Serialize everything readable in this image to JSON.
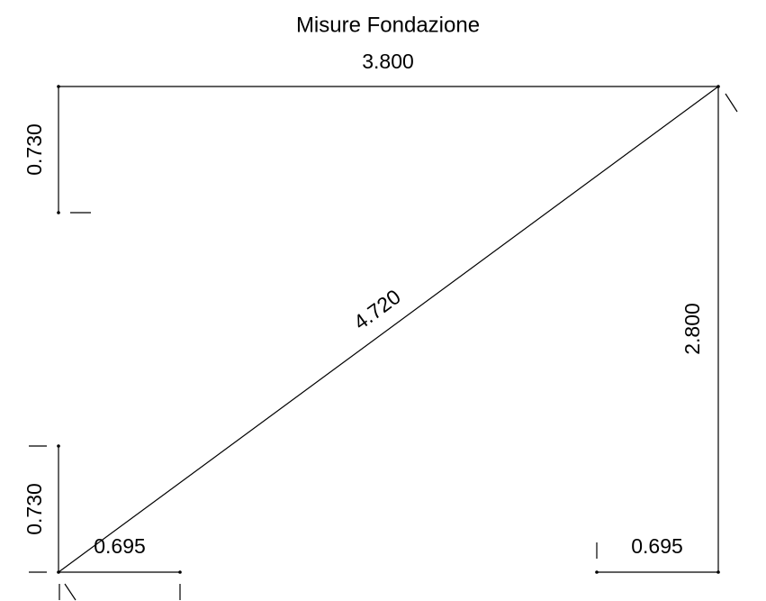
{
  "title": "Misure Fondazione",
  "dimensions": {
    "top_width": "3.800",
    "left_top_height": "0.730",
    "diagonal": "4.720",
    "right_height": "2.800",
    "left_bottom_height": "0.730",
    "bottom_left_width": "0.695",
    "bottom_right_width": "0.695"
  }
}
